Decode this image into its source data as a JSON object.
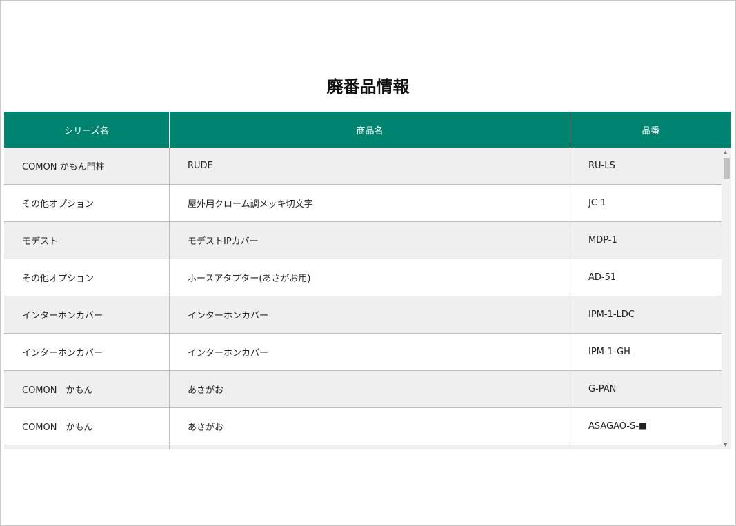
{
  "title": "廃番品情報",
  "header": {
    "series": "シリーズ名",
    "product": "商品名",
    "code": "品番"
  },
  "rows": [
    {
      "series": "COMON かもん門柱",
      "product": "RUDE",
      "code": "RU-LS"
    },
    {
      "series": "その他オプション",
      "product": "屋外用クローム調メッキ切文字",
      "code": "JC-1"
    },
    {
      "series": "モデスト",
      "product": "モデストIPカバー",
      "code": "MDP-1"
    },
    {
      "series": "その他オプション",
      "product": "ホースアタプター(あさがお用)",
      "code": "AD-51"
    },
    {
      "series": "インターホンカバー",
      "product": "インターホンカバー",
      "code": "IPM-1-LDC"
    },
    {
      "series": "インターホンカバー",
      "product": "インターホンカバー",
      "code": "IPM-1-GH"
    },
    {
      "series": "COMON　かもん",
      "product": "あさがお",
      "code": "G-PAN"
    },
    {
      "series": "COMON　かもん",
      "product": "あさがお",
      "code": "ASAGAO-S-■"
    },
    {
      "series": "",
      "product": "",
      "code": ""
    }
  ],
  "colors": {
    "header_bg": "#008470",
    "row_alt": "#efefef"
  }
}
